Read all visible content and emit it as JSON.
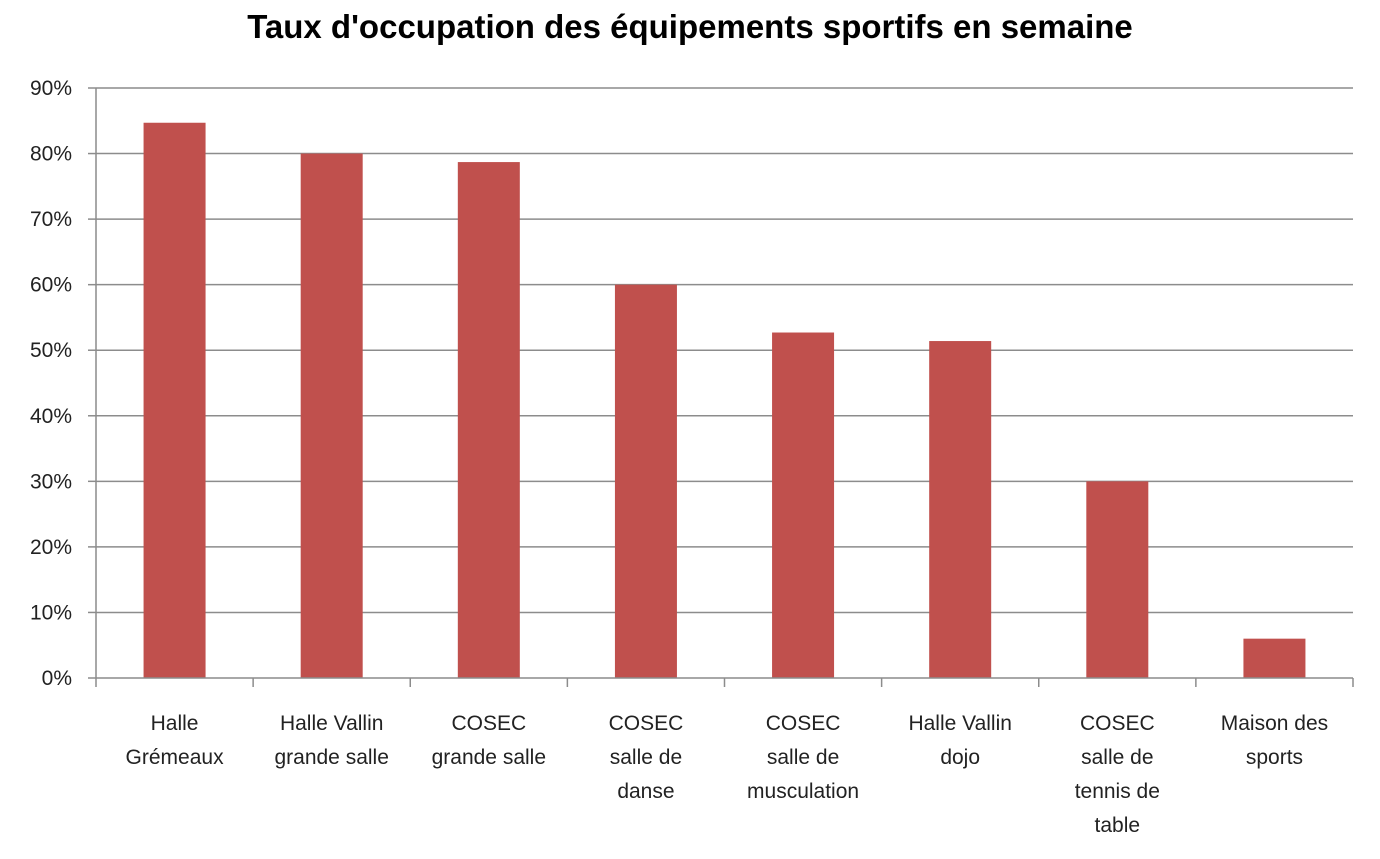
{
  "chart_data": {
    "type": "bar",
    "title": "Taux d'occupation des équipements sportifs en semaine",
    "categories": [
      [
        "Halle",
        "Grémeaux"
      ],
      [
        "Halle Vallin",
        "grande salle"
      ],
      [
        "COSEC",
        "grande salle"
      ],
      [
        "COSEC",
        "salle de",
        "danse"
      ],
      [
        "COSEC",
        "salle de",
        "musculation"
      ],
      [
        "Halle Vallin",
        "dojo"
      ],
      [
        "COSEC",
        "salle de",
        "tennis de",
        "table"
      ],
      [
        "Maison des",
        "sports"
      ]
    ],
    "values": [
      0.847,
      0.8,
      0.787,
      0.6,
      0.527,
      0.514,
      0.3,
      0.06
    ],
    "ylim": [
      0,
      0.9
    ],
    "yticks": [
      "0%",
      "10%",
      "20%",
      "30%",
      "40%",
      "50%",
      "60%",
      "70%",
      "80%",
      "90%"
    ],
    "grid": true,
    "bar_color": "#C0504D",
    "grid_color": "#8C8C8C"
  }
}
